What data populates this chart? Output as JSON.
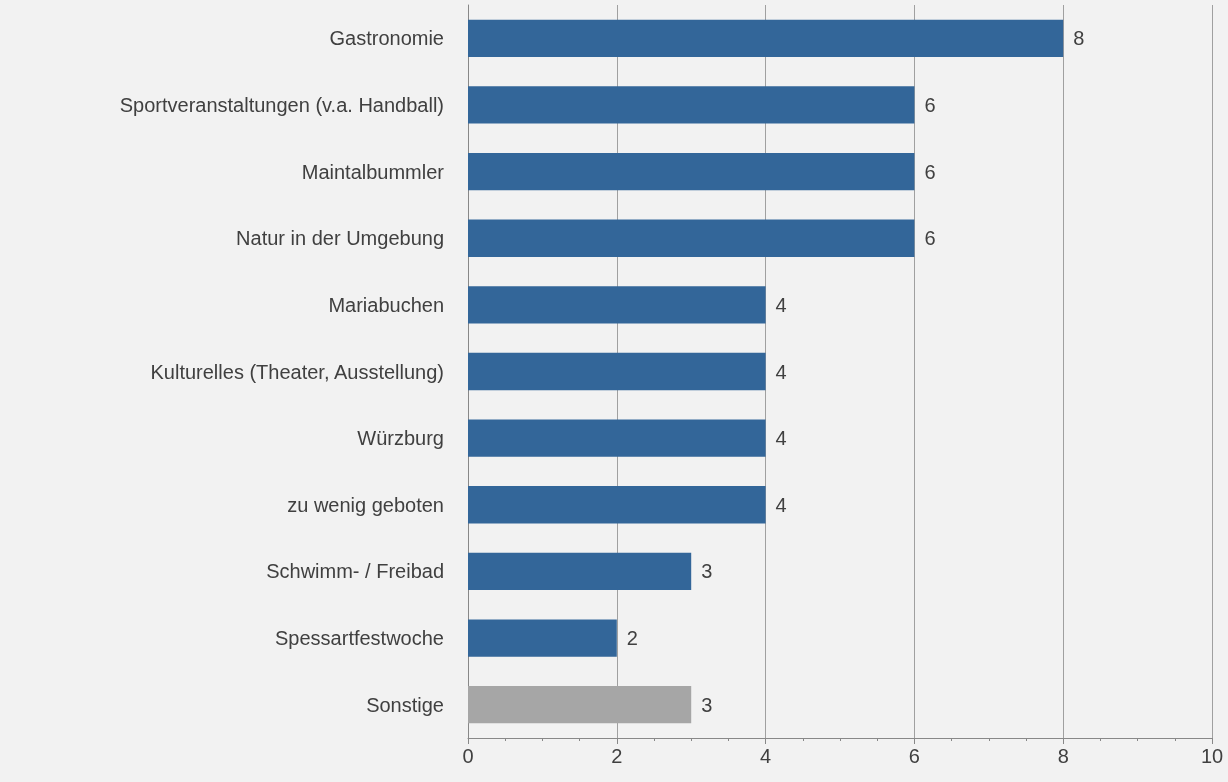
{
  "chart_data": {
    "type": "bar",
    "orientation": "horizontal",
    "categories": [
      "Gastronomie",
      "Sportveranstaltungen (v.a. Handball)",
      "Maintalbummler",
      "Natur in der Umgebung",
      "Mariabuchen",
      "Kulturelles (Theater, Ausstellung)",
      "Würzburg",
      "zu wenig geboten",
      "Schwimm- / Freibad",
      "Spessartfestwoche",
      "Sonstige"
    ],
    "values": [
      8,
      6,
      6,
      6,
      4,
      4,
      4,
      4,
      3,
      2,
      3
    ],
    "colors": [
      "#336699",
      "#336699",
      "#336699",
      "#336699",
      "#336699",
      "#336699",
      "#336699",
      "#336699",
      "#336699",
      "#336699",
      "#a6a6a6"
    ],
    "xlim": [
      0,
      10
    ],
    "xticks": [
      0,
      2,
      4,
      6,
      8,
      10
    ],
    "grid": "x",
    "data_labels": true
  }
}
